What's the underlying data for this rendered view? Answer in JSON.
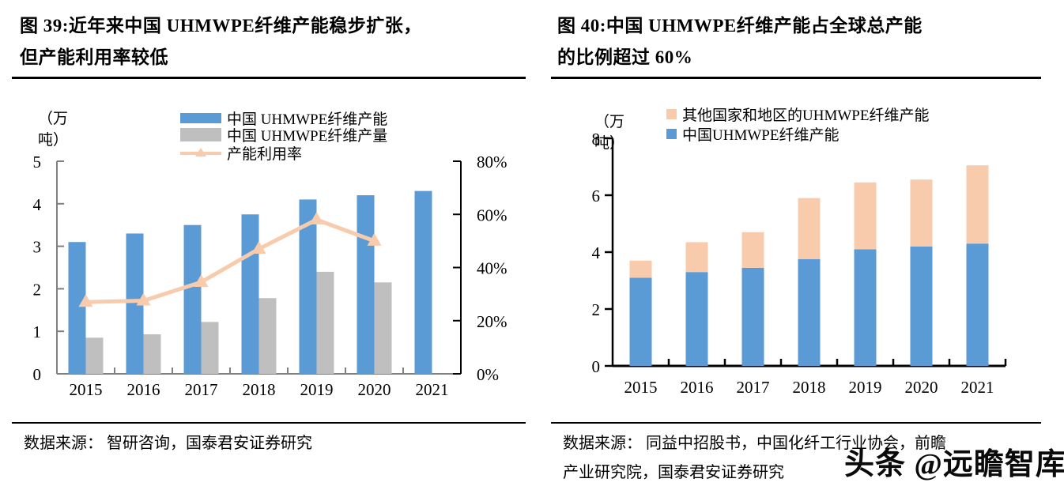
{
  "colors": {
    "china_blue": "#5B9BD5",
    "production_gray": "#BFBFBF",
    "peach": "#F8CBAD",
    "axis_gray": "#7f7f7f",
    "axis_black": "#000000"
  },
  "figures": [
    {
      "title_line1": "图 39:近年来中国 UHMWPE纤维产能稳步扩张，",
      "title_line2": "但产能利用率较低",
      "unit": "（万\n吨）",
      "source": "数据来源： 智研咨询，国泰君安证券研究"
    },
    {
      "title_line1": "图 40:中国 UHMWPE纤维产能占全球总产能",
      "title_line2": "的比例超过 60%",
      "unit": "（万\n吨）",
      "source_line1": "数据来源： 同益中招股书，中国化纤工行业协会，前瞻",
      "source_line2": "产业研究院，国泰君安证券研究"
    }
  ],
  "watermark": "头条 @远瞻智库",
  "chart_data": [
    {
      "type": "bar",
      "subtype": "grouped-bar-with-line",
      "title": "近年来中国UHMWPE纤维产能稳步扩张，但产能利用率较低",
      "categories": [
        "2015",
        "2016",
        "2017",
        "2018",
        "2019",
        "2020",
        "2021"
      ],
      "series": [
        {
          "name": "中国 UHMWPE纤维产能",
          "type": "bar",
          "axis": "left",
          "color": "#5B9BD5",
          "values": [
            3.1,
            3.3,
            3.5,
            3.75,
            4.1,
            4.2,
            4.3
          ]
        },
        {
          "name": "中国 UHMWPE纤维产量",
          "type": "bar",
          "axis": "left",
          "color": "#BFBFBF",
          "values": [
            0.85,
            0.93,
            1.22,
            1.78,
            2.4,
            2.15,
            null
          ]
        },
        {
          "name": "产能利用率",
          "type": "line",
          "axis": "right",
          "color": "#F8CBAD",
          "values": [
            27,
            27.5,
            34.5,
            47,
            58,
            50,
            null
          ]
        }
      ],
      "left_axis": {
        "unit": "万吨",
        "min": 0,
        "max": 5,
        "ticks": [
          0,
          1,
          2,
          3,
          4,
          5
        ]
      },
      "right_axis": {
        "unit": "%",
        "min": 0,
        "max": 80,
        "ticks": [
          0,
          20,
          40,
          60,
          80
        ],
        "tick_labels": [
          "0%",
          "20%",
          "40%",
          "60%",
          "80%"
        ]
      },
      "legend_position": "top",
      "grid": false
    },
    {
      "type": "bar",
      "subtype": "stacked-bar",
      "title": "中国UHMWPE纤维产能占全球总产能的比例超过60%",
      "categories": [
        "2015",
        "2016",
        "2017",
        "2018",
        "2019",
        "2020",
        "2021"
      ],
      "series": [
        {
          "name": "中国UHMWPE纤维产能",
          "type": "bar",
          "stack_order": 0,
          "color": "#5B9BD5",
          "values": [
            3.1,
            3.3,
            3.45,
            3.75,
            4.1,
            4.2,
            4.3
          ]
        },
        {
          "name": "其他国家和地区的UHMWPE纤维产能",
          "type": "bar",
          "stack_order": 1,
          "color": "#F8CBAD",
          "values": [
            0.6,
            1.05,
            1.25,
            2.15,
            2.35,
            2.35,
            2.75
          ]
        }
      ],
      "left_axis": {
        "unit": "万吨",
        "min": 0,
        "max": 8,
        "ticks": [
          0,
          2,
          4,
          6,
          8
        ]
      },
      "legend_position": "top",
      "grid": false
    }
  ]
}
